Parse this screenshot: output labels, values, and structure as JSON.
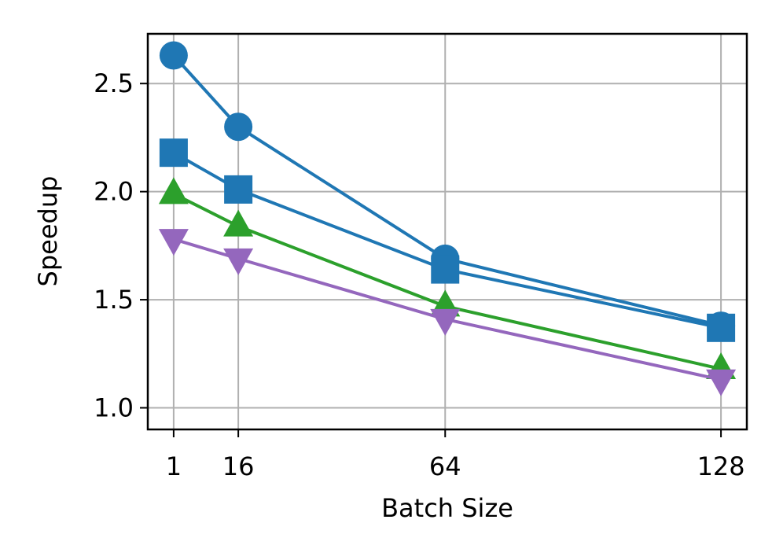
{
  "chart_data": {
    "type": "line",
    "xlabel": "Batch Size",
    "ylabel": "Speedup",
    "x": [
      1,
      16,
      64,
      128
    ],
    "x_ticks": [
      "1",
      "16",
      "64",
      "128"
    ],
    "y_ticks": [
      "1.0",
      "1.5",
      "2.0",
      "2.5"
    ],
    "xlim": [
      -5,
      134
    ],
    "ylim": [
      0.9,
      2.73
    ],
    "grid": true,
    "legend": "none",
    "series": [
      {
        "marker": "circle",
        "color": "#1f77b4",
        "values": [
          2.63,
          2.3,
          1.69,
          1.38
        ]
      },
      {
        "marker": "square",
        "color": "#1f77b4",
        "values": [
          2.18,
          2.01,
          1.64,
          1.37
        ]
      },
      {
        "marker": "triangle-up",
        "color": "#2ca02c",
        "values": [
          1.99,
          1.84,
          1.47,
          1.18
        ]
      },
      {
        "marker": "triangle-down",
        "color": "#9467bd",
        "values": [
          1.78,
          1.69,
          1.41,
          1.13
        ]
      }
    ]
  }
}
